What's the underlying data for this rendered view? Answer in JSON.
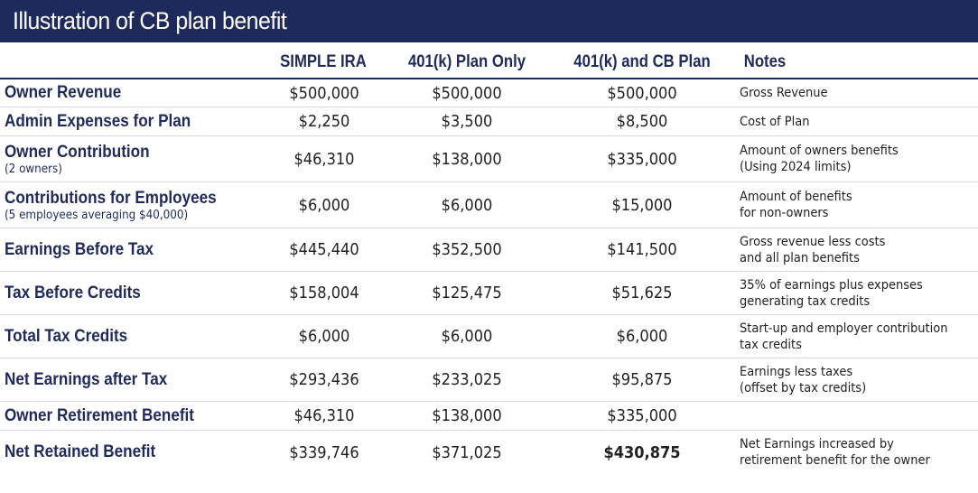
{
  "title": "Illustration of CB plan benefit",
  "columns": [
    "SIMPLE IRA",
    "401(k) Plan Only",
    "401(k) and CB Plan",
    "Notes"
  ],
  "rows": [
    {
      "label": "Owner Revenue",
      "sub": "",
      "v1": "$500,000",
      "v2": "$500,000",
      "v3": "$500,000",
      "note1": "Gross Revenue",
      "note2": "",
      "emphasis_v3": false
    },
    {
      "label": "Admin Expenses for Plan",
      "sub": "",
      "v1": "$2,250",
      "v2": "$3,500",
      "v3": "$8,500",
      "note1": "Cost of Plan",
      "note2": "",
      "emphasis_v3": false
    },
    {
      "label": "Owner Contribution",
      "sub": "(2 owners)",
      "v1": "$46,310",
      "v2": "$138,000",
      "v3": "$335,000",
      "note1": "Amount of owners benefits",
      "note2": "(Using 2024 limits)",
      "emphasis_v3": false
    },
    {
      "label": "Contributions for Employees",
      "sub": "(5 employees averaging $40,000)",
      "v1": "$6,000",
      "v2": "$6,000",
      "v3": "$15,000",
      "note1": "Amount of benefits",
      "note2": "for non-owners",
      "emphasis_v3": false
    },
    {
      "label": "Earnings Before Tax",
      "sub": "",
      "v1": "$445,440",
      "v2": "$352,500",
      "v3": "$141,500",
      "note1": "Gross revenue less costs",
      "note2": "and all plan benefits",
      "emphasis_v3": false
    },
    {
      "label": "Tax Before Credits",
      "sub": "",
      "v1": "$158,004",
      "v2": "$125,475",
      "v3": "$51,625",
      "note1": "35% of earnings plus expenses",
      "note2": "generating tax credits",
      "emphasis_v3": false
    },
    {
      "label": "Total Tax Credits",
      "sub": "",
      "v1": "$6,000",
      "v2": "$6,000",
      "v3": "$6,000",
      "note1": "Start-up and employer contribution",
      "note2": "tax credits",
      "emphasis_v3": false
    },
    {
      "label": "Net Earnings after Tax",
      "sub": "",
      "v1": "$293,436",
      "v2": "$233,025",
      "v3": "$95,875",
      "note1": "Earnings less taxes",
      "note2": "(offset by tax credits)",
      "emphasis_v3": false
    },
    {
      "label": "Owner Retirement Benefit",
      "sub": "",
      "v1": "$46,310",
      "v2": "$138,000",
      "v3": "$335,000",
      "note1": "",
      "note2": "",
      "emphasis_v3": false
    },
    {
      "label": "Net Retained Benefit",
      "sub": "",
      "v1": "$339,746",
      "v2": "$371,025",
      "v3": "$430,875",
      "note1": "Net Earnings increased by",
      "note2": "retirement benefit for the owner",
      "emphasis_v3": true
    }
  ]
}
